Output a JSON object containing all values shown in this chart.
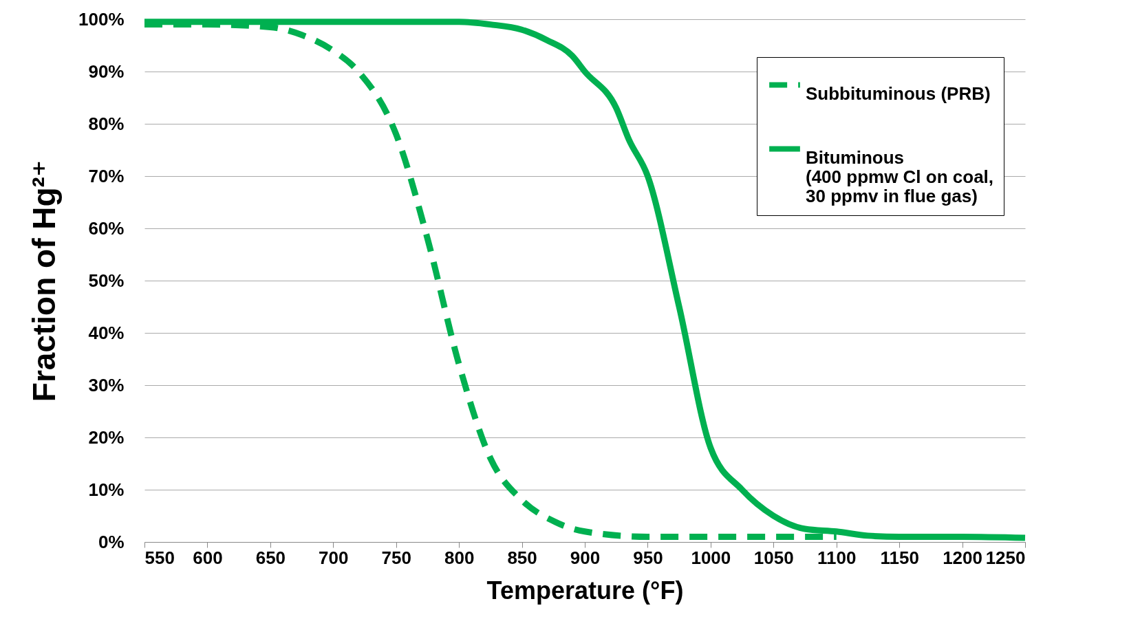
{
  "chart_data": {
    "type": "line",
    "xlabel": "Temperature (°F)",
    "ylabel": "Fraction of Hg²⁺",
    "xlim": [
      550,
      1250
    ],
    "xticks": [
      550,
      600,
      650,
      700,
      750,
      800,
      850,
      900,
      950,
      1000,
      1050,
      1100,
      1150,
      1200,
      1250
    ],
    "ylim": [
      0,
      100
    ],
    "yticks": [
      {
        "value": 0,
        "label": "0%"
      },
      {
        "value": 10,
        "label": "10%"
      },
      {
        "value": 20,
        "label": "20%"
      },
      {
        "value": 30,
        "label": "30%"
      },
      {
        "value": 40,
        "label": "40%"
      },
      {
        "value": 50,
        "label": "50%"
      },
      {
        "value": 60,
        "label": "60%"
      },
      {
        "value": 70,
        "label": "70%"
      },
      {
        "value": 80,
        "label": "80%"
      },
      {
        "value": 90,
        "label": "90%"
      },
      {
        "value": 100,
        "label": "100%"
      }
    ],
    "grid": "y",
    "legend": "top right",
    "marker": "none",
    "series": [
      {
        "name": "Subbituminous (PRB)",
        "color": "#00b050",
        "line_style": "dashed",
        "x": [
          550,
          600,
          650,
          675,
          700,
          720,
          750,
          775,
          800,
          825,
          850,
          875,
          900,
          950,
          1000,
          1050,
          1100
        ],
        "values": [
          99,
          99,
          98.5,
          97,
          94,
          90,
          78,
          58,
          34,
          16,
          8,
          4,
          2,
          1,
          1,
          1,
          1
        ]
      },
      {
        "name": "Bituminous\n(400 ppmw Cl on coal,\n30 ppmv in flue gas)",
        "color": "#00b050",
        "line_style": "solid",
        "x": [
          550,
          800,
          825,
          850,
          870,
          890,
          900,
          925,
          935,
          950,
          975,
          1000,
          1025,
          1050,
          1075,
          1100,
          1125,
          1150,
          1200,
          1250
        ],
        "values": [
          99.5,
          99.5,
          99,
          98,
          96,
          93,
          90,
          83,
          77,
          70,
          45,
          18,
          10,
          5,
          2.5,
          2,
          1.2,
          1,
          1,
          0.8
        ]
      }
    ]
  }
}
